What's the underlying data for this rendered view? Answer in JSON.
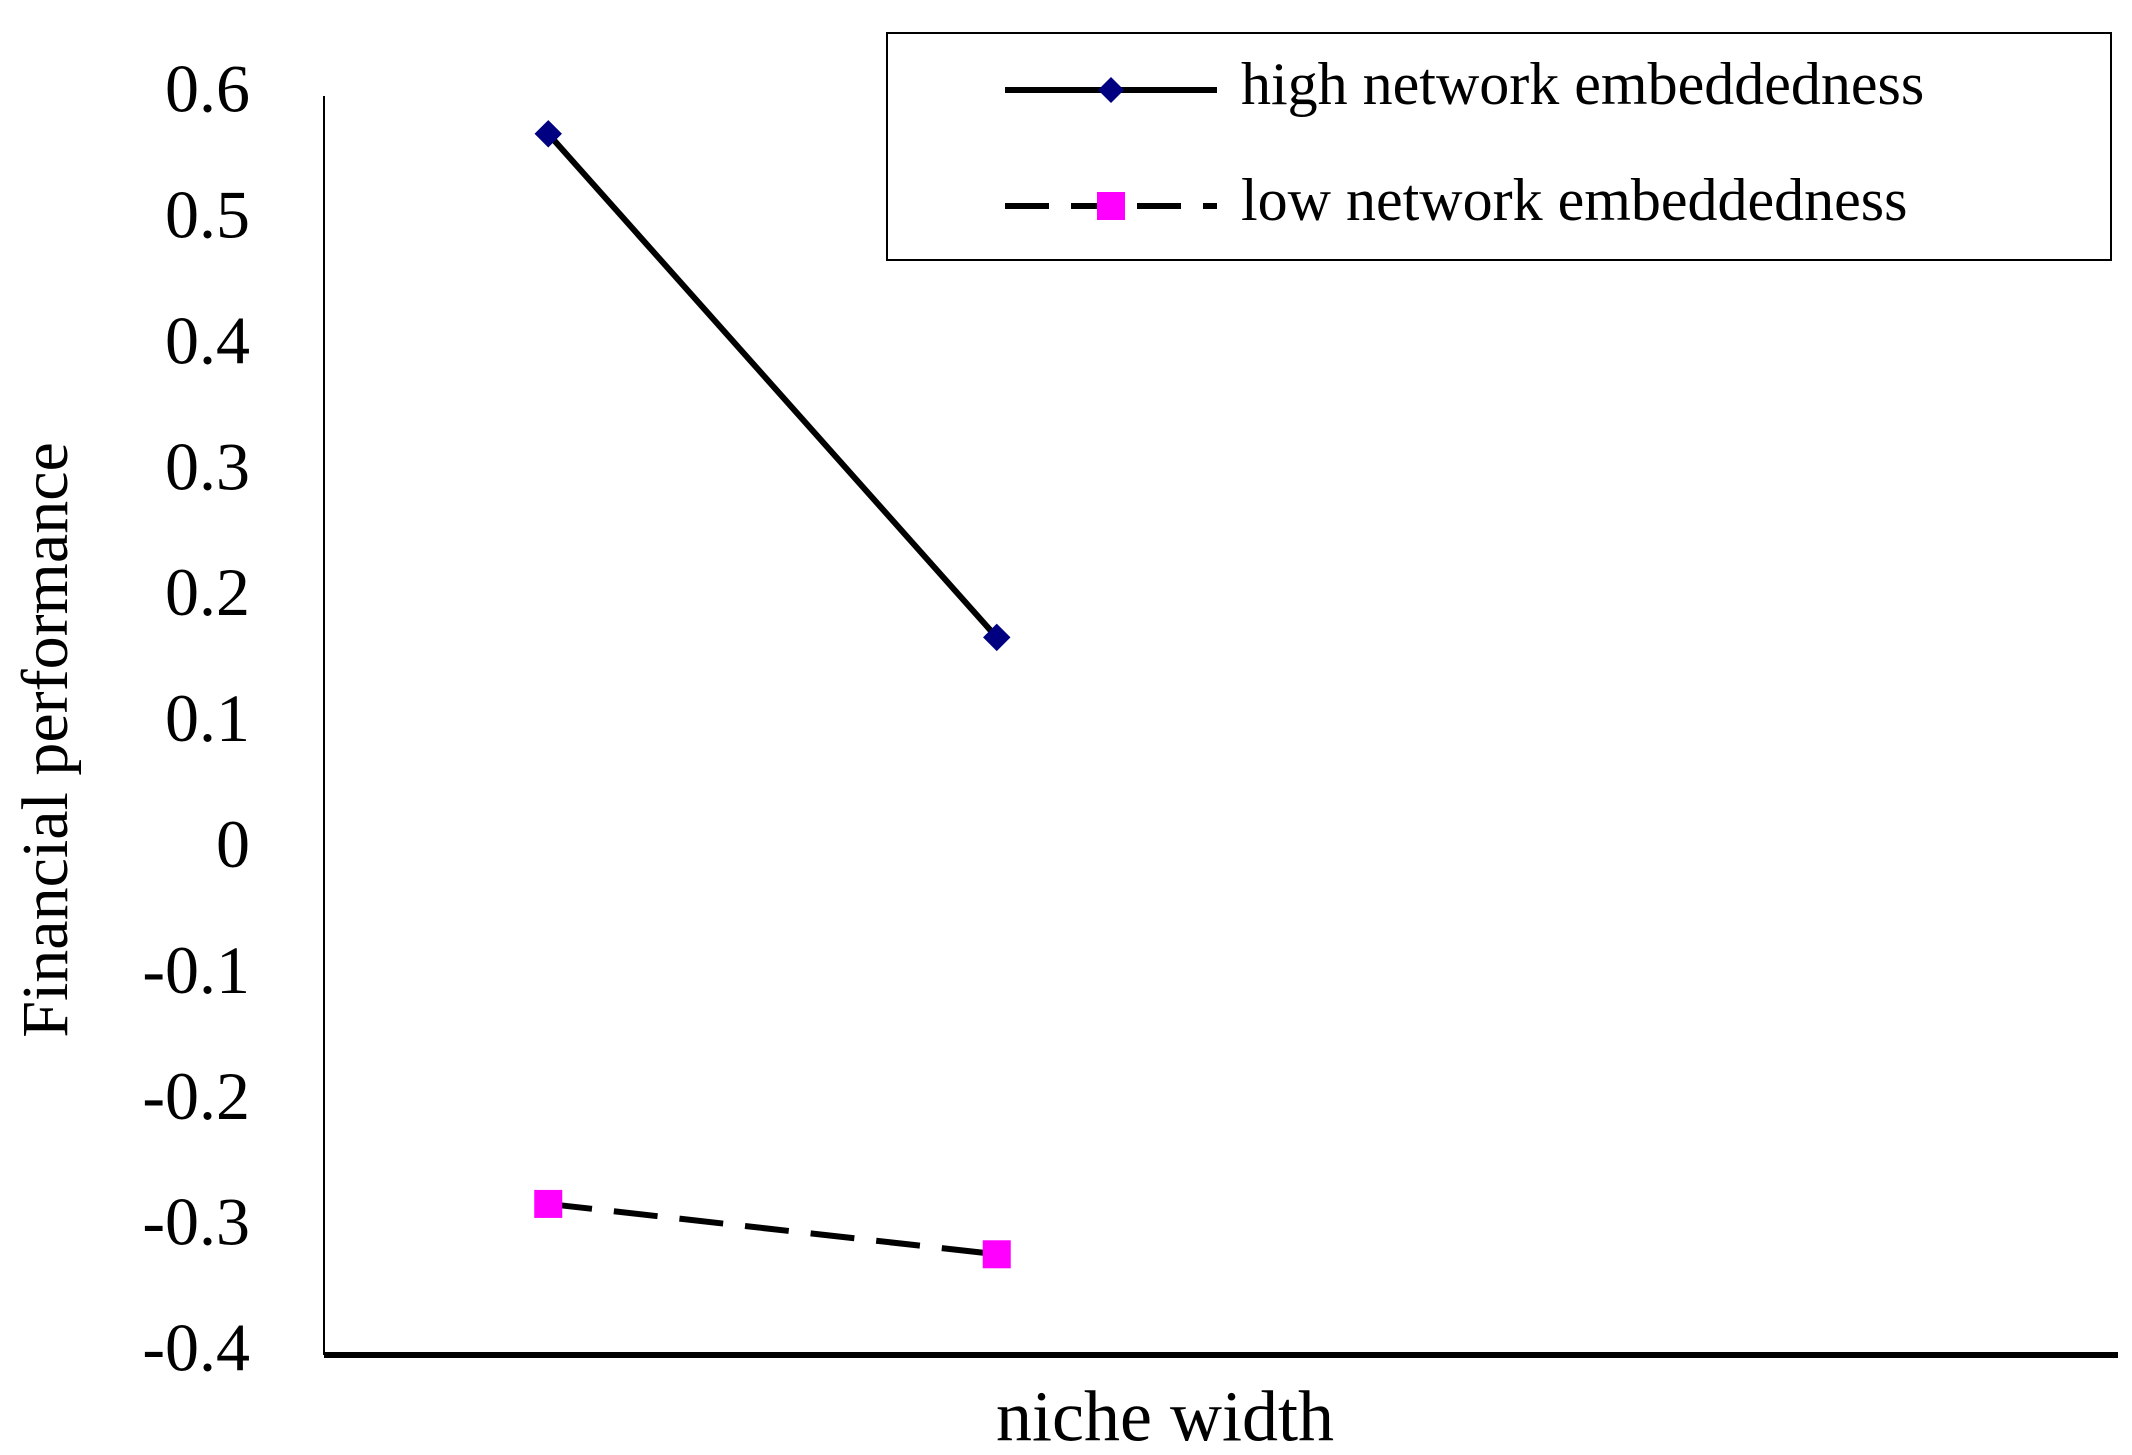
{
  "chart_data": {
    "type": "line",
    "x_label": "niche width",
    "y_label": "Financial performance",
    "categories": [
      null,
      null
    ],
    "series": [
      {
        "name": "high network embeddedness",
        "color": "#000080",
        "line_color": "#000000",
        "marker": "diamond",
        "dash": false,
        "values": [
          0.57,
          0.17
        ]
      },
      {
        "name": "low network embeddedness",
        "color": "#ff00ff",
        "line_color": "#000000",
        "marker": "square",
        "dash": true,
        "values": [
          -0.28,
          -0.32
        ]
      }
    ],
    "ylim": [
      -0.4,
      0.6
    ],
    "yticks": [
      -0.4,
      -0.3,
      -0.2,
      -0.1,
      0,
      0.1,
      0.2,
      0.3,
      0.4,
      0.5,
      0.6
    ],
    "grid": false,
    "legend": "upper right"
  }
}
